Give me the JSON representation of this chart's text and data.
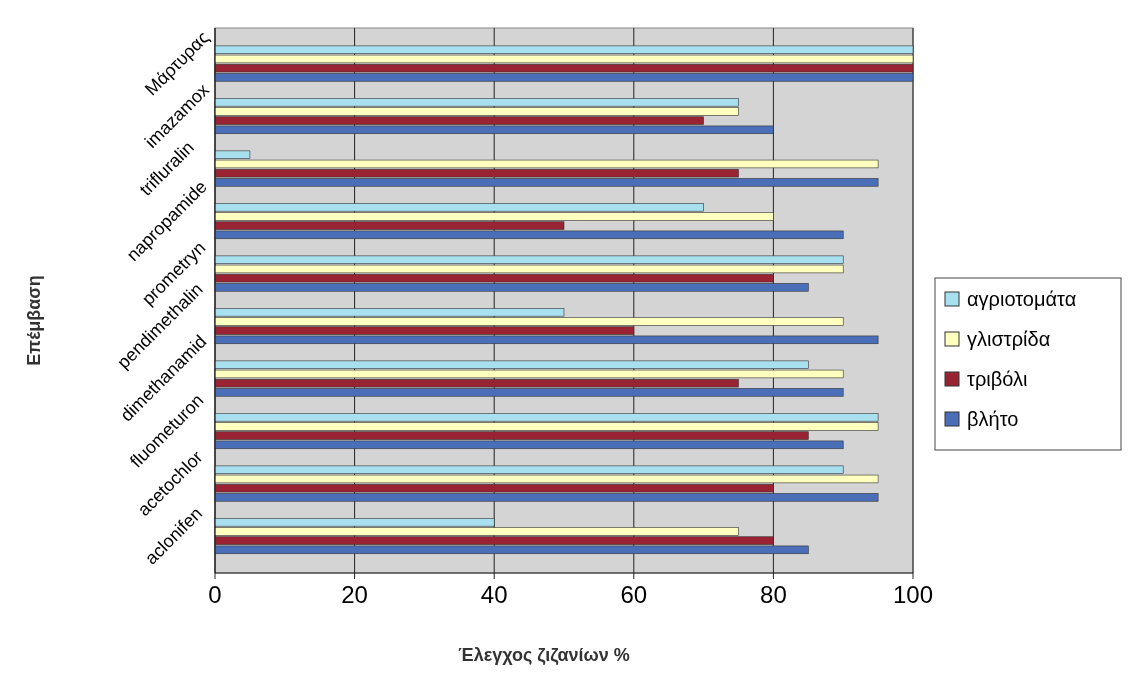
{
  "chart_data": {
    "type": "bar",
    "orientation": "horizontal",
    "xlabel": "Έλεγχος ζιζανίων %",
    "ylabel": "Επέμβαση",
    "categories": [
      "Μάρτυρας",
      "imazamox",
      "trifluralin",
      "napropamide",
      "prometryn",
      "pendimethalin",
      "dimethanamid",
      "fluometuron",
      "acetochlor",
      "aclonifen"
    ],
    "series": [
      {
        "name": "αγριοτομάτα",
        "color": "#a8e0f0",
        "values": [
          100,
          75,
          5,
          70,
          90,
          50,
          85,
          95,
          90,
          40
        ]
      },
      {
        "name": "γλιστρίδα",
        "color": "#ffffc0",
        "values": [
          100,
          75,
          95,
          80,
          90,
          90,
          90,
          95,
          95,
          75
        ]
      },
      {
        "name": "τριβόλι",
        "color": "#992233",
        "values": [
          100,
          70,
          75,
          50,
          80,
          60,
          75,
          85,
          80,
          80
        ]
      },
      {
        "name": "βλήτο",
        "color": "#4a6fb8",
        "values": [
          100,
          80,
          95,
          90,
          85,
          95,
          90,
          90,
          95,
          85
        ]
      }
    ],
    "xlim": [
      0,
      100
    ],
    "xticks": [
      0,
      20,
      40,
      60,
      80,
      100
    ],
    "grid": "x",
    "legend": "right"
  }
}
